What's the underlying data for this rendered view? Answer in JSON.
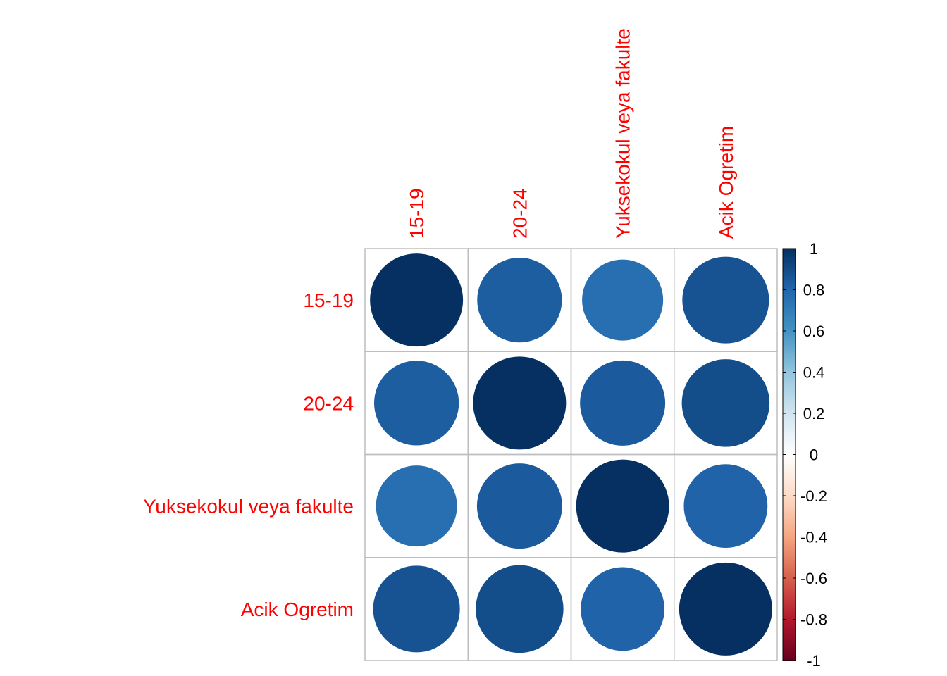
{
  "chart_data": {
    "type": "heatmap",
    "labels": [
      "15-19",
      "20-24",
      "Yuksekokul veya fakulte",
      "Acik Ogretim"
    ],
    "matrix": [
      [
        1.0,
        0.83,
        0.76,
        0.87
      ],
      [
        0.83,
        1.0,
        0.84,
        0.89
      ],
      [
        0.76,
        0.84,
        1.0,
        0.81
      ],
      [
        0.87,
        0.89,
        0.81,
        1.0
      ]
    ],
    "label_color": "#FF0000",
    "colorbar": {
      "range": [
        -1,
        1
      ],
      "ticks": [
        "1",
        "0.8",
        "0.6",
        "0.4",
        "0.2",
        "0",
        "-0.2",
        "-0.4",
        "-0.6",
        "-0.8",
        "-1"
      ],
      "tick_values": [
        1,
        0.8,
        0.6,
        0.4,
        0.2,
        0,
        -0.2,
        -0.4,
        -0.6,
        -0.8,
        -1
      ],
      "colors": [
        "#67001F",
        "#B2182B",
        "#D6604D",
        "#F4A582",
        "#FDDBC7",
        "#FFFFFF",
        "#D1E5F0",
        "#92C5DE",
        "#4393C3",
        "#2166AC",
        "#053061"
      ]
    },
    "grid": true,
    "legend_position": "right"
  }
}
